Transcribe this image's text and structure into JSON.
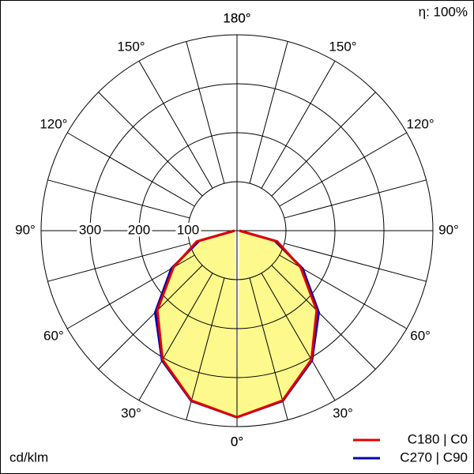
{
  "chart_data": {
    "type": "polar",
    "unit_label": "cd/klm",
    "efficiency_label": "η: 100%",
    "angles": [
      0,
      15,
      30,
      45,
      60,
      75,
      90
    ],
    "series": [
      {
        "name": "C270 | C90",
        "color": "#0000b0",
        "values": [
          381,
          360,
          306,
          236,
          155,
          80,
          5
        ]
      },
      {
        "name": "C180 | C0",
        "color": "#e00000",
        "values": [
          381,
          359,
          304,
          230,
          150,
          85,
          5
        ]
      }
    ],
    "fill_color": "#fdf98c",
    "rlim": [
      0,
      400
    ],
    "rticks": [
      100,
      200,
      300
    ],
    "angle_ticks": [
      {
        "value": 0,
        "label": "0°"
      },
      {
        "value": 30,
        "label": "30°"
      },
      {
        "value": 60,
        "label": "60°"
      },
      {
        "value": 90,
        "label": "90°"
      },
      {
        "value": 120,
        "label": "120°"
      },
      {
        "value": 150,
        "label": "150°"
      },
      {
        "value": 180,
        "label": "180°"
      }
    ]
  }
}
